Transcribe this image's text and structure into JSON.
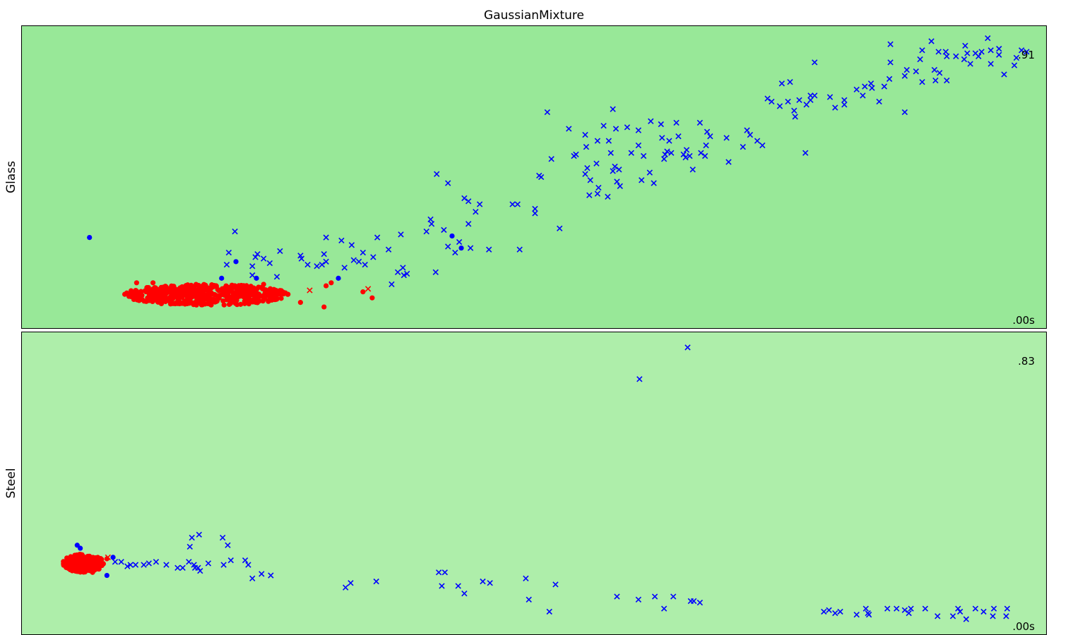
{
  "chart_data": [
    {
      "type": "scatter",
      "title": "GaussianMixture",
      "ylabel": "Glass",
      "score_top": ".91",
      "score_bottom": ".00s",
      "background": "#98e898",
      "xlim": [
        0,
        100
      ],
      "ylim": [
        0,
        100
      ],
      "inlier_color": "#ff0000",
      "outlier_color": "#0000ff",
      "inlier_cluster": {
        "cx": 18,
        "cy": 11,
        "rx": 8,
        "ry": 3.5,
        "n": 520,
        "seed": 7
      },
      "inliers_extra": [
        [
          11.2,
          15
        ],
        [
          12.8,
          15
        ],
        [
          23.6,
          14.5
        ],
        [
          29.7,
          14
        ],
        [
          30.2,
          15
        ],
        [
          33.3,
          12
        ],
        [
          34.2,
          10
        ],
        [
          27.2,
          8.5
        ],
        [
          29.5,
          7
        ]
      ],
      "inliers_x": [
        [
          28.1,
          12.5
        ],
        [
          33.8,
          13
        ]
      ],
      "outliers_dots": [
        [
          6.6,
          30
        ],
        [
          20.9,
          22
        ],
        [
          19.5,
          16.5
        ],
        [
          22.9,
          16.5
        ],
        [
          30.9,
          16.5
        ],
        [
          42.0,
          30.5
        ],
        [
          42.9,
          26.5
        ]
      ],
      "outliers_x": [
        [
          20.8,
          32
        ],
        [
          25.2,
          25.5
        ],
        [
          20.2,
          25
        ],
        [
          23.0,
          24.5
        ],
        [
          22.8,
          23.5
        ],
        [
          23.6,
          23
        ],
        [
          24.2,
          21.5
        ],
        [
          20.0,
          21
        ],
        [
          22.5,
          20.5
        ],
        [
          22.5,
          17.5
        ],
        [
          24.9,
          17
        ],
        [
          27.3,
          23
        ],
        [
          27.9,
          21
        ],
        [
          27.2,
          24
        ],
        [
          28.8,
          20.5
        ],
        [
          29.3,
          21
        ],
        [
          29.7,
          22
        ],
        [
          29.5,
          24.5
        ],
        [
          29.7,
          30
        ],
        [
          31.2,
          29
        ],
        [
          32.2,
          27.5
        ],
        [
          33.3,
          25
        ],
        [
          31.5,
          20
        ],
        [
          32.4,
          22.5
        ],
        [
          32.9,
          22
        ],
        [
          33.5,
          21
        ],
        [
          34.3,
          23.5
        ],
        [
          34.7,
          30
        ],
        [
          35.8,
          26
        ],
        [
          37.0,
          31
        ],
        [
          37.2,
          20
        ],
        [
          36.7,
          18.5
        ],
        [
          37.3,
          17.5
        ],
        [
          37.6,
          18
        ],
        [
          36.1,
          14.5
        ],
        [
          39.5,
          32
        ],
        [
          40.0,
          34.5
        ],
        [
          39.9,
          36
        ],
        [
          41.2,
          32.5
        ],
        [
          42.7,
          28.5
        ],
        [
          41.6,
          27
        ],
        [
          40.4,
          18.5
        ],
        [
          42.3,
          25
        ],
        [
          43.8,
          26.5
        ],
        [
          45.6,
          26
        ],
        [
          40.5,
          51
        ],
        [
          41.6,
          48
        ],
        [
          44.7,
          41
        ],
        [
          43.6,
          34.5
        ],
        [
          43.6,
          42
        ],
        [
          43.2,
          43
        ],
        [
          44.3,
          38.5
        ],
        [
          47.9,
          41
        ],
        [
          48.4,
          41
        ],
        [
          48.6,
          26
        ],
        [
          50.1,
          38
        ],
        [
          50.1,
          39.5
        ],
        [
          50.5,
          50.5
        ],
        [
          50.7,
          50
        ],
        [
          51.7,
          56
        ],
        [
          53.9,
          57
        ],
        [
          53.4,
          66
        ],
        [
          51.3,
          71.5
        ],
        [
          55.0,
          64
        ],
        [
          55.2,
          53
        ],
        [
          55.0,
          51
        ],
        [
          55.5,
          49
        ],
        [
          56.1,
          54.5
        ],
        [
          55.4,
          44
        ],
        [
          56.3,
          46.5
        ],
        [
          57.2,
          43.5
        ],
        [
          56.2,
          44.5
        ],
        [
          52.5,
          33
        ],
        [
          55.1,
          60
        ],
        [
          54.1,
          57.5
        ],
        [
          56.2,
          62
        ],
        [
          56.8,
          67
        ],
        [
          57.5,
          58
        ],
        [
          57.7,
          52
        ],
        [
          57.9,
          53.5
        ],
        [
          58.1,
          48.5
        ],
        [
          57.7,
          72.5
        ],
        [
          57.3,
          62
        ],
        [
          58.0,
          66
        ],
        [
          58.3,
          52.5
        ],
        [
          59.1,
          66.5
        ],
        [
          58.4,
          47
        ],
        [
          59.5,
          58
        ],
        [
          60.2,
          65.5
        ],
        [
          60.2,
          60.5
        ],
        [
          60.5,
          49
        ],
        [
          60.7,
          57
        ],
        [
          61.3,
          51.5
        ],
        [
          61.7,
          48
        ],
        [
          61.4,
          68.5
        ],
        [
          62.4,
          67.5
        ],
        [
          62.5,
          63
        ],
        [
          62.7,
          56
        ],
        [
          62.8,
          57.5
        ],
        [
          63.9,
          68
        ],
        [
          64.1,
          63.5
        ],
        [
          63.0,
          58.5
        ],
        [
          63.2,
          62
        ],
        [
          63.4,
          58
        ],
        [
          64.6,
          57.5
        ],
        [
          64.8,
          56.5
        ],
        [
          64.9,
          59
        ],
        [
          65.2,
          57
        ],
        [
          65.5,
          52.5
        ],
        [
          66.3,
          58
        ],
        [
          66.8,
          60.5
        ],
        [
          66.9,
          65
        ],
        [
          66.7,
          57
        ],
        [
          67.2,
          63.5
        ],
        [
          66.2,
          68
        ],
        [
          68.8,
          63
        ],
        [
          69.0,
          55
        ],
        [
          70.4,
          60
        ],
        [
          70.8,
          65.5
        ],
        [
          71.8,
          62
        ],
        [
          71.1,
          64
        ],
        [
          72.3,
          60.5
        ],
        [
          73.2,
          75
        ],
        [
          74.0,
          73.5
        ],
        [
          74.2,
          81
        ],
        [
          72.8,
          76
        ],
        [
          75.0,
          81.5
        ],
        [
          74.8,
          75
        ],
        [
          75.4,
          72
        ],
        [
          75.9,
          75.5
        ],
        [
          75.5,
          70
        ],
        [
          76.6,
          74
        ],
        [
          77.0,
          77
        ],
        [
          77.0,
          75.5
        ],
        [
          76.5,
          58
        ],
        [
          77.4,
          77
        ],
        [
          77.4,
          88
        ],
        [
          78.9,
          76.5
        ],
        [
          79.4,
          73
        ],
        [
          80.3,
          74
        ],
        [
          80.3,
          75.5
        ],
        [
          82.1,
          77
        ],
        [
          81.5,
          79
        ],
        [
          82.3,
          80
        ],
        [
          82.9,
          81
        ],
        [
          83.0,
          79.5
        ],
        [
          84.2,
          80
        ],
        [
          84.8,
          88
        ],
        [
          84.8,
          94
        ],
        [
          84.7,
          82.5
        ],
        [
          83.7,
          75
        ],
        [
          86.2,
          83.5
        ],
        [
          86.4,
          85.5
        ],
        [
          86.2,
          71.5
        ],
        [
          87.7,
          89
        ],
        [
          88.8,
          95
        ],
        [
          87.9,
          92
        ],
        [
          87.3,
          85
        ],
        [
          87.9,
          81.5
        ],
        [
          89.2,
          82
        ],
        [
          89.1,
          85.5
        ],
        [
          89.5,
          91.5
        ],
        [
          90.2,
          91.5
        ],
        [
          89.6,
          84.5
        ],
        [
          90.3,
          90
        ],
        [
          90.3,
          82
        ],
        [
          91.2,
          90
        ],
        [
          92.0,
          89
        ],
        [
          92.1,
          93.5
        ],
        [
          92.3,
          91
        ],
        [
          92.6,
          87.5
        ],
        [
          93.4,
          90
        ],
        [
          93.1,
          91
        ],
        [
          93.7,
          91.5
        ],
        [
          94.6,
          87.5
        ],
        [
          94.3,
          96
        ],
        [
          94.6,
          92
        ],
        [
          95.4,
          92.5
        ],
        [
          95.4,
          90.5
        ],
        [
          95.9,
          84
        ],
        [
          96.9,
          87
        ],
        [
          97.1,
          89.5
        ],
        [
          97.6,
          92
        ],
        [
          98.1,
          91.5
        ]
      ]
    },
    {
      "type": "scatter",
      "ylabel": "Steel",
      "score_top": ".83",
      "score_bottom": ".00s",
      "background": "#aeeeaa",
      "xlim": [
        0,
        100
      ],
      "ylim": [
        0,
        100
      ],
      "inlier_color": "#ff0000",
      "outlier_color": "#0000ff",
      "inlier_cluster": {
        "cx": 6.0,
        "cy": 23.5,
        "rx": 2.0,
        "ry": 3.0,
        "n": 260,
        "seed": 11
      },
      "inliers_extra": [
        [
          7.3,
          23
        ],
        [
          6.9,
          20.5
        ],
        [
          8.3,
          25
        ]
      ],
      "inliers_x": [
        [
          8.4,
          25.5
        ]
      ],
      "outliers_dots": [
        [
          5.4,
          29.5
        ],
        [
          5.7,
          28.5
        ],
        [
          8.3,
          19.5
        ],
        [
          8.9,
          25.5
        ]
      ],
      "outliers_x": [
        [
          9.1,
          24
        ],
        [
          9.7,
          24
        ],
        [
          10.3,
          22.5
        ],
        [
          10.6,
          23
        ],
        [
          11.1,
          23
        ],
        [
          12.4,
          23.5
        ],
        [
          11.9,
          23
        ],
        [
          13.1,
          24
        ],
        [
          14.1,
          23
        ],
        [
          15.7,
          22
        ],
        [
          16.3,
          24
        ],
        [
          16.8,
          23
        ],
        [
          16.4,
          29
        ],
        [
          15.2,
          22
        ],
        [
          17.2,
          22
        ],
        [
          17.3,
          33
        ],
        [
          16.6,
          32
        ],
        [
          16.9,
          22
        ],
        [
          17.4,
          21
        ],
        [
          18.2,
          23.5
        ],
        [
          19.6,
          32
        ],
        [
          19.7,
          23
        ],
        [
          20.4,
          24.5
        ],
        [
          20.1,
          29.5
        ],
        [
          21.8,
          24.5
        ],
        [
          22.1,
          23
        ],
        [
          22.5,
          18.5
        ],
        [
          23.4,
          20
        ],
        [
          24.3,
          19.5
        ],
        [
          31.6,
          15.5
        ],
        [
          32.1,
          17
        ],
        [
          34.6,
          17.5
        ],
        [
          40.7,
          20.5
        ],
        [
          41.3,
          20.5
        ],
        [
          41.0,
          16
        ],
        [
          42.6,
          16
        ],
        [
          43.2,
          13.5
        ],
        [
          45.0,
          17.5
        ],
        [
          45.7,
          17
        ],
        [
          49.5,
          11.5
        ],
        [
          49.2,
          18.5
        ],
        [
          51.5,
          7.5
        ],
        [
          52.1,
          16.5
        ],
        [
          58.1,
          12.5
        ],
        [
          60.2,
          11.5
        ],
        [
          61.8,
          12.5
        ],
        [
          62.7,
          8.5
        ],
        [
          63.6,
          12.5
        ],
        [
          65.3,
          11
        ],
        [
          65.6,
          11
        ],
        [
          66.2,
          10.5
        ],
        [
          60.3,
          84.5
        ],
        [
          65.0,
          95
        ],
        [
          78.3,
          7.5
        ],
        [
          78.8,
          8
        ],
        [
          79.4,
          7
        ],
        [
          79.9,
          7.5
        ],
        [
          81.5,
          6.5
        ],
        [
          82.4,
          8.5
        ],
        [
          82.6,
          7
        ],
        [
          82.7,
          6.5
        ],
        [
          84.5,
          8.5
        ],
        [
          85.4,
          8.5
        ],
        [
          86.2,
          8
        ],
        [
          86.8,
          8.5
        ],
        [
          86.6,
          7
        ],
        [
          88.2,
          8.5
        ],
        [
          89.4,
          6
        ],
        [
          90.9,
          6
        ],
        [
          91.4,
          8.5
        ],
        [
          91.6,
          7.5
        ],
        [
          92.2,
          5
        ],
        [
          93.1,
          8.5
        ],
        [
          93.9,
          7.5
        ],
        [
          94.8,
          6
        ],
        [
          94.9,
          8.5
        ],
        [
          96.2,
          8.5
        ],
        [
          96.1,
          6
        ]
      ]
    }
  ]
}
